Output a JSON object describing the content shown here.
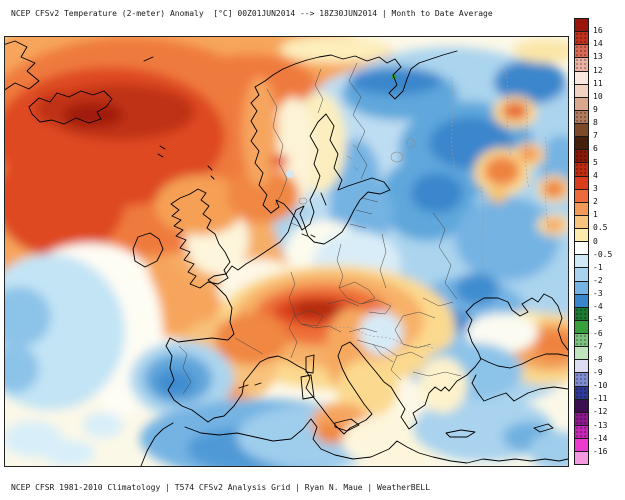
{
  "header": {
    "title": "NCEP CFSv2 Temperature (2-meter) Anomaly  [°C] 00Z01JUN2014 --> 18Z30JUN2014 | Month to Date Average"
  },
  "footer": {
    "credit": "NCEP CFSR 1981-2010 Climatology | T574 CFSv2 Analysis Grid | Ryan N. Maue | WeatherBELL"
  },
  "colorbar": {
    "unit": "°C",
    "tick_labels": [
      "16",
      "14",
      "13",
      "12",
      "11",
      "10",
      "9",
      "8",
      "7",
      "6",
      "5",
      "4",
      "3",
      "2",
      "1",
      "0.5",
      "0",
      "-0.5",
      "-1",
      "-2",
      "-3",
      "-4",
      "-5",
      "-6",
      "-7",
      "-8",
      "-9",
      "-10",
      "-11",
      "-12",
      "-13",
      "-14",
      "-16"
    ],
    "swatches": [
      {
        "hex": "#9a150c",
        "stipple": false
      },
      {
        "hex": "#c1301d",
        "stipple": true
      },
      {
        "hex": "#d96a55",
        "stipple": true
      },
      {
        "hex": "#eab2a2",
        "stipple": true
      },
      {
        "hex": "#f8e8e0",
        "stipple": false
      },
      {
        "hex": "#f2d2c2",
        "stipple": false
      },
      {
        "hex": "#d9a88f",
        "stipple": false
      },
      {
        "hex": "#b27c5e",
        "stipple": true
      },
      {
        "hex": "#7c4a28",
        "stipple": false
      },
      {
        "hex": "#45200a",
        "stipple": false
      },
      {
        "hex": "#8a1a08",
        "stipple": true
      },
      {
        "hex": "#bf2c12",
        "stipple": true
      },
      {
        "hex": "#da3e1e",
        "stipple": false
      },
      {
        "hex": "#ec6a3c",
        "stipple": false
      },
      {
        "hex": "#f49a58",
        "stipple": false
      },
      {
        "hex": "#f9c57e",
        "stipple": false
      },
      {
        "hex": "#fcecac",
        "stipple": false
      },
      {
        "hex": "#ffffff",
        "stipple": false
      },
      {
        "hex": "#cfe9f6",
        "stipple": false
      },
      {
        "hex": "#a9d3ee",
        "stipple": false
      },
      {
        "hex": "#74b3e3",
        "stipple": false
      },
      {
        "hex": "#3a86cc",
        "stipple": false
      },
      {
        "hex": "#1e7a32",
        "stipple": true
      },
      {
        "hex": "#35a03c",
        "stipple": false
      },
      {
        "hex": "#7cc47e",
        "stipple": true
      },
      {
        "hex": "#c2e4bc",
        "stipple": false
      },
      {
        "hex": "#dcdcf2",
        "stipple": false
      },
      {
        "hex": "#808cd2",
        "stipple": true
      },
      {
        "hex": "#2e3a96",
        "stipple": true
      },
      {
        "hex": "#3c0f50",
        "stipple": false
      },
      {
        "hex": "#8c1a8c",
        "stipple": true
      },
      {
        "hex": "#c428b4",
        "stipple": true
      },
      {
        "hex": "#ec3cd0",
        "stipple": false
      },
      {
        "hex": "#f49ae0",
        "stipple": false
      }
    ]
  }
}
